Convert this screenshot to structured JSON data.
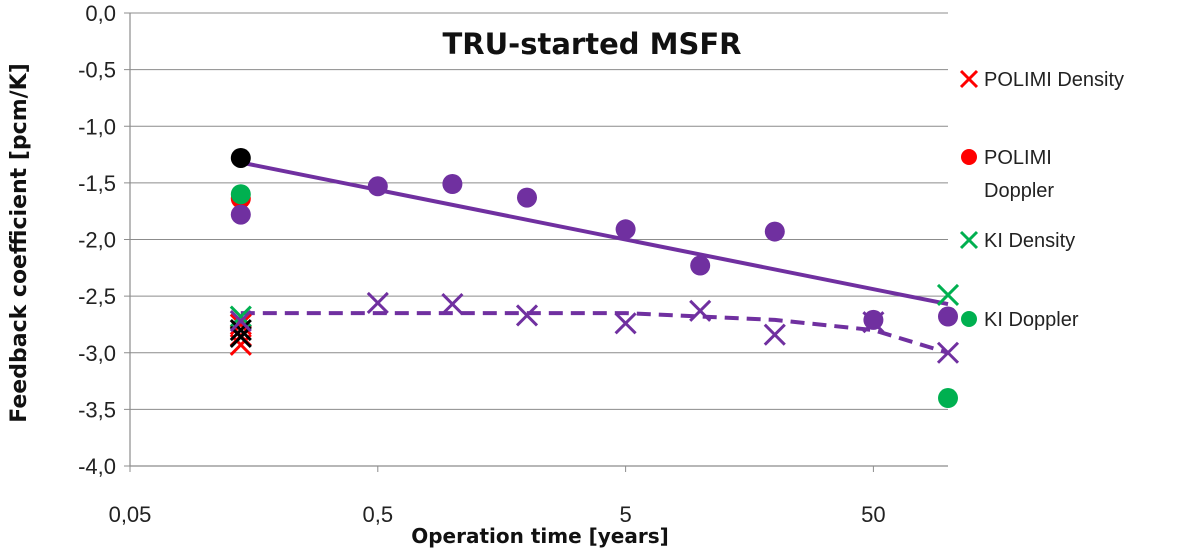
{
  "chart_data": {
    "type": "scatter",
    "title": "TRU-started MSFR",
    "xlabel": "Operation time [years]",
    "ylabel": "Feedback coefficient [pcm/K]",
    "x_scale": "log",
    "xlim": [
      0.05,
      100
    ],
    "ylim": [
      -4.0,
      0.0
    ],
    "x_tick_labels": [
      "0,05",
      "0,5",
      "5",
      "50"
    ],
    "x_tick_values": [
      0.05,
      0.5,
      5,
      50
    ],
    "y_tick_labels": [
      "0,0",
      "-0,5",
      "-1,0",
      "-1,5",
      "-2,0",
      "-2,5",
      "-3,0",
      "-3,5",
      "-4,0"
    ],
    "y_tick_values": [
      0.0,
      -0.5,
      -1.0,
      -1.5,
      -2.0,
      -2.5,
      -3.0,
      -3.5,
      -4.0
    ],
    "grid": true,
    "legend_position": "right",
    "series": [
      {
        "name": "POLIMI Density",
        "marker": "x",
        "color": "#ff0000",
        "points": [
          [
            0.14,
            -2.75
          ],
          [
            0.14,
            -2.93
          ],
          [
            0.14,
            -2.85
          ]
        ]
      },
      {
        "name": "POLIMI Doppler",
        "marker": "circle",
        "color": "#ff0000",
        "points": [
          [
            0.14,
            -1.64
          ]
        ]
      },
      {
        "name": "KI Density",
        "marker": "x",
        "color": "#00b050",
        "points": [
          [
            0.14,
            -2.68
          ],
          [
            100,
            -2.49
          ]
        ]
      },
      {
        "name": "KI Doppler",
        "marker": "circle",
        "color": "#00b050",
        "points": [
          [
            0.14,
            -1.6
          ],
          [
            100,
            -3.4
          ]
        ]
      },
      {
        "marker": "circle",
        "color": "#000000",
        "points": [
          [
            0.14,
            -1.28
          ]
        ]
      },
      {
        "marker": "x",
        "color": "#000000",
        "points": [
          [
            0.14,
            -2.8
          ],
          [
            0.14,
            -2.86
          ]
        ]
      },
      {
        "marker": "circle",
        "color": "#7030a0",
        "points": [
          [
            0.14,
            -1.78
          ],
          [
            0.5,
            -1.53
          ],
          [
            1.0,
            -1.51
          ],
          [
            2.0,
            -1.63
          ],
          [
            5.0,
            -1.91
          ],
          [
            10.0,
            -2.23
          ],
          [
            20.0,
            -1.93
          ],
          [
            50.0,
            -2.71
          ],
          [
            100.0,
            -2.68
          ]
        ]
      },
      {
        "marker": "x",
        "color": "#7030a0",
        "points": [
          [
            0.14,
            -2.72
          ],
          [
            0.5,
            -2.56
          ],
          [
            1.0,
            -2.57
          ],
          [
            2.0,
            -2.67
          ],
          [
            5.0,
            -2.74
          ],
          [
            10.0,
            -2.63
          ],
          [
            20.0,
            -2.84
          ],
          [
            50.0,
            -2.73
          ],
          [
            100.0,
            -3.0
          ]
        ]
      }
    ],
    "trend_lines": [
      {
        "style": "solid",
        "color": "#7030a0",
        "points": [
          [
            0.14,
            -1.32
          ],
          [
            100,
            -2.57
          ]
        ]
      },
      {
        "style": "dashed",
        "color": "#7030a0",
        "points": [
          [
            0.14,
            -2.65
          ],
          [
            5,
            -2.65
          ],
          [
            20,
            -2.71
          ],
          [
            50,
            -2.8
          ],
          [
            100,
            -3.0
          ]
        ]
      }
    ]
  }
}
